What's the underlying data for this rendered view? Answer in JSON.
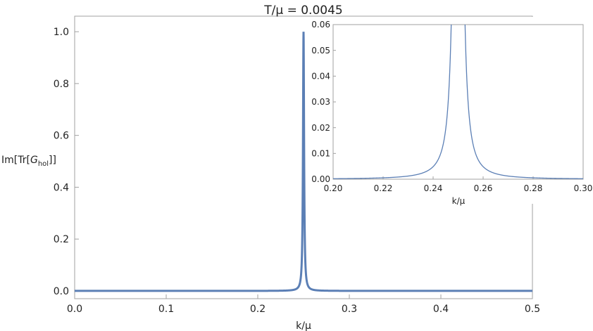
{
  "chart_data": [
    {
      "type": "line",
      "title": "T/μ = 0.0045",
      "xlabel": "k/μ",
      "ylabel": "Im[Tr[G_hol]]",
      "ylabel_parts": {
        "pre": "Im[Tr[",
        "main": "G",
        "sub": "hol",
        "post": "]]"
      },
      "xlim": [
        0.0,
        0.5
      ],
      "ylim": [
        -0.03,
        1.06
      ],
      "xticks": [
        "0.0",
        "0.1",
        "0.2",
        "0.3",
        "0.4",
        "0.5"
      ],
      "yticks": [
        "0.0",
        "0.2",
        "0.4",
        "0.6",
        "0.8",
        "1.0"
      ],
      "series": [
        {
          "color": "#5b7fb5",
          "peak_center": 0.25,
          "peak_height": 1.0,
          "half_width": 0.0007,
          "x": [
            0.0,
            0.1,
            0.2,
            0.24,
            0.245,
            0.248,
            0.249,
            0.2495,
            0.25,
            0.2505,
            0.251,
            0.252,
            0.255,
            0.26,
            0.3,
            0.4,
            0.5
          ],
          "y": [
            0.0,
            0.0,
            0.0002,
            0.005,
            0.019,
            0.109,
            0.329,
            0.662,
            1.0,
            0.662,
            0.329,
            0.109,
            0.019,
            0.005,
            0.0002,
            0.0,
            0.0
          ]
        }
      ],
      "grid": false
    },
    {
      "type": "line",
      "title": "",
      "xlabel": "k/μ",
      "ylabel": "",
      "xlim": [
        0.2,
        0.3
      ],
      "ylim": [
        0.0,
        0.06
      ],
      "xticks": [
        "0.20",
        "0.22",
        "0.24",
        "0.26",
        "0.28",
        "0.30"
      ],
      "yticks": [
        "0.00",
        "0.01",
        "0.02",
        "0.03",
        "0.04",
        "0.05",
        "0.06"
      ],
      "series": [
        {
          "color": "#5b7fb5",
          "peak_center": 0.25,
          "peak_height": 1.0,
          "half_width": 0.0007,
          "x": [
            0.2,
            0.22,
            0.24,
            0.245,
            0.247,
            0.248,
            0.252,
            0.253,
            0.255,
            0.26,
            0.28,
            0.3
          ],
          "y": [
            0.0002,
            0.0006,
            0.005,
            0.019,
            0.052,
            0.109,
            0.109,
            0.052,
            0.019,
            0.005,
            0.0006,
            0.0002
          ]
        }
      ],
      "grid": false,
      "placement": "inset top-right"
    }
  ]
}
